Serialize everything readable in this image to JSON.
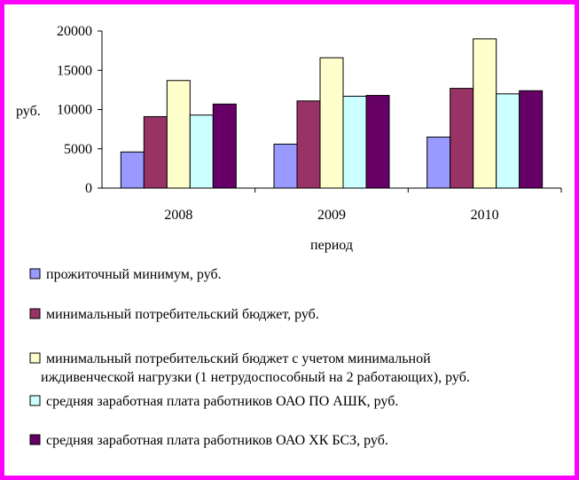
{
  "chart_data": {
    "type": "bar",
    "categories": [
      "2008",
      "2009",
      "2010"
    ],
    "ylabel": "руб.",
    "xlabel": "период",
    "ylim": [
      0,
      20000
    ],
    "yticks": [
      0,
      5000,
      10000,
      15000,
      20000
    ],
    "grid": false,
    "legend_position": "bottom",
    "series": [
      {
        "name": "прожиточный минимум, руб.",
        "color": "#9999ff",
        "values": [
          4600,
          5600,
          6500
        ]
      },
      {
        "name": "минимальный потребительский бюджет, руб.",
        "color": "#993366",
        "values": [
          9100,
          11100,
          12700
        ]
      },
      {
        "name": "минимальный потребительский бюджет с учетом минимальной иждивенческой нагрузки (1 нетрудоспособный на 2 работающих), руб.",
        "name_lines": [
          "минимальный потребительский бюджет с учетом минимальной",
          "иждивенческой нагрузки (1 нетрудоспособный на 2 работающих), руб."
        ],
        "color": "#ffffcc",
        "values": [
          13700,
          16600,
          19000
        ]
      },
      {
        "name": "средняя заработная плата работников ОАО ПО АШК, руб.",
        "color": "#ccffff",
        "values": [
          9300,
          11700,
          12000
        ]
      },
      {
        "name": "средняя заработная плата работников ОАО ХК БСЗ, руб.",
        "color": "#660066",
        "values": [
          10700,
          11800,
          12400
        ]
      }
    ]
  }
}
